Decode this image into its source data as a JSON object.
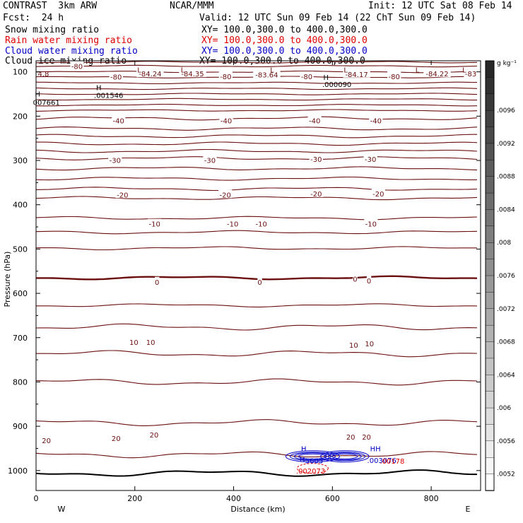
{
  "header": {
    "model": "CONTRAST  3km ARW",
    "org": "NCAR/MMM",
    "init": "Init: 12 UTC Sat 08 Feb 14",
    "fcst": "Fcst:  24 h",
    "valid": "Valid: 12 UTC Sun 09 Feb 14 (22 ChT Sun 09 Feb 14)"
  },
  "legend": [
    {
      "label": "Snow mixing ratio",
      "xy": "XY= 100.0,300.0 to 400.0,300.0",
      "color": "#000000"
    },
    {
      "label": "Rain water mixing ratio",
      "xy": "XY= 100.0,300.0 to 400.0,300.0",
      "color": "#e00000"
    },
    {
      "label": "Cloud water mixing ratio",
      "xy": "XY= 100.0,300.0 to 400.0,300.0",
      "color": "#0000c8"
    },
    {
      "label": "Cloud ice mixing ratio",
      "xy": "XY= 100.0,300.0 to 400.0,300.0",
      "color": "#000000"
    }
  ],
  "chart_data": {
    "type": "contour",
    "xlabel": "Distance (km)",
    "ylabel": "Pressure (hPa)",
    "xlim": [
      0,
      900
    ],
    "ylim": [
      1045,
      75
    ],
    "x_ticks": [
      "0",
      "200",
      "400",
      "600",
      "800"
    ],
    "y_ticks": [
      "100",
      "200",
      "300",
      "400",
      "500",
      "600",
      "700",
      "800",
      "900",
      "1000"
    ],
    "x_end_labels": {
      "left": "W",
      "right": "E"
    },
    "colorbar": {
      "unit": "g kg⁻¹",
      "ticks": [
        ".0096",
        ".0092",
        ".0088",
        ".0084",
        ".008",
        ".0076",
        ".0072",
        ".0068",
        ".0064",
        ".006",
        ".0056",
        ".0052"
      ]
    },
    "temperature_contours": {
      "color": "#6b0f0f",
      "pressures_hPa": [
        78,
        87,
        100,
        112,
        125,
        138,
        150,
        162,
        175,
        187,
        205,
        228,
        245,
        262,
        279,
        295,
        318,
        341,
        364,
        385,
        430,
        462,
        498,
        565,
        627,
        676,
        736,
        800,
        892,
        964,
        1006
      ],
      "bold_zero_pressure_hPa": 565
    },
    "contour_labels": [
      {
        "text": "-80",
        "x": 83,
        "p": 87
      },
      {
        "text": "-80",
        "x": 162,
        "p": 111
      },
      {
        "text": "-84.24",
        "x": 231,
        "p": 104
      },
      {
        "text": "-84.35",
        "x": 317,
        "p": 104
      },
      {
        "text": "-80",
        "x": 384,
        "p": 110
      },
      {
        "text": "-83.64",
        "x": 467,
        "p": 106
      },
      {
        "text": "-80",
        "x": 548,
        "p": 110
      },
      {
        "text": "-84.17",
        "x": 649,
        "p": 105
      },
      {
        "text": "-80",
        "x": 725,
        "p": 110
      },
      {
        "text": "-84.22",
        "x": 812,
        "p": 104
      },
      {
        "text": "-83",
        "x": 880,
        "p": 104
      },
      {
        "text": "-40",
        "x": 167,
        "p": 210
      },
      {
        "text": "-40",
        "x": 385,
        "p": 210
      },
      {
        "text": "-40",
        "x": 564,
        "p": 210
      },
      {
        "text": "-40",
        "x": 688,
        "p": 210
      },
      {
        "text": "-30",
        "x": 160,
        "p": 299
      },
      {
        "text": "-30",
        "x": 352,
        "p": 299
      },
      {
        "text": "-30",
        "x": 567,
        "p": 297
      },
      {
        "text": "-30",
        "x": 677,
        "p": 297
      },
      {
        "text": "-20",
        "x": 175,
        "p": 377
      },
      {
        "text": "-20",
        "x": 383,
        "p": 377
      },
      {
        "text": "-20",
        "x": 567,
        "p": 375
      },
      {
        "text": "-20",
        "x": 693,
        "p": 375
      },
      {
        "text": "-10",
        "x": 240,
        "p": 443
      },
      {
        "text": "-10",
        "x": 398,
        "p": 443
      },
      {
        "text": "-10",
        "x": 456,
        "p": 443
      },
      {
        "text": "-10",
        "x": 678,
        "p": 443
      },
      {
        "text": "0",
        "x": 245,
        "p": 574
      },
      {
        "text": "0",
        "x": 453,
        "p": 574
      },
      {
        "text": "0",
        "x": 646,
        "p": 567
      },
      {
        "text": "0",
        "x": 674,
        "p": 571
      },
      {
        "text": "10",
        "x": 198,
        "p": 710
      },
      {
        "text": "10",
        "x": 232,
        "p": 710
      },
      {
        "text": "10",
        "x": 643,
        "p": 716
      },
      {
        "text": "10",
        "x": 675,
        "p": 713
      },
      {
        "text": "20",
        "x": 21,
        "p": 932
      },
      {
        "text": "20",
        "x": 162,
        "p": 927
      },
      {
        "text": "20",
        "x": 239,
        "p": 919
      },
      {
        "text": "20",
        "x": 637,
        "p": 924
      },
      {
        "text": "20",
        "x": 669,
        "p": 924
      }
    ],
    "extrema_labels": [
      {
        "text": "L",
        "x": 209,
        "p": 95,
        "color": "#6b0f0f"
      },
      {
        "text": "L",
        "x": 297,
        "p": 95,
        "color": "#6b0f0f"
      },
      {
        "text": "L",
        "x": 478,
        "p": 95,
        "color": "#6b0f0f"
      },
      {
        "text": "L",
        "x": 627,
        "p": 95,
        "color": "#6b0f0f"
      },
      {
        "text": "L",
        "x": 772,
        "p": 95,
        "color": "#6b0f0f"
      },
      {
        "text": "L",
        "x": 867,
        "p": 95,
        "color": "#6b0f0f"
      },
      {
        "text": "H",
        "x": 127,
        "p": 135,
        "color": "#000000"
      },
      {
        "text": ".001546",
        "x": 147,
        "p": 152,
        "color": "#000000"
      },
      {
        "text": "H",
        "x": 3,
        "p": 149,
        "color": "#000000"
      },
      {
        "text": "007661",
        "x": 21,
        "p": 168,
        "color": "#000000"
      },
      {
        "text": "4.8",
        "x": 15,
        "p": 104,
        "color": "#6b0f0f"
      },
      {
        "text": "H",
        "x": 587,
        "p": 112,
        "color": "#000000"
      },
      {
        "text": ".000090",
        "x": 609,
        "p": 128,
        "color": "#000000"
      },
      {
        "text": "H",
        "x": 542,
        "p": 950,
        "color": "#0000c8"
      },
      {
        "text": "H",
        "x": 539,
        "p": 974,
        "color": "#0000c8"
      },
      {
        "text": "5605",
        "x": 563,
        "p": 977,
        "color": "#0000c8"
      },
      {
        "text": ".002073",
        "x": 556,
        "p": 1000,
        "color": "#e00000"
      },
      {
        "text": "HH",
        "x": 687,
        "p": 950,
        "color": "#0000c8"
      },
      {
        "text": ".003076",
        "x": 700,
        "p": 976,
        "color": "#0000c8"
      },
      {
        "text": ".00178",
        "x": 721,
        "p": 978,
        "color": "#e00000"
      }
    ]
  }
}
